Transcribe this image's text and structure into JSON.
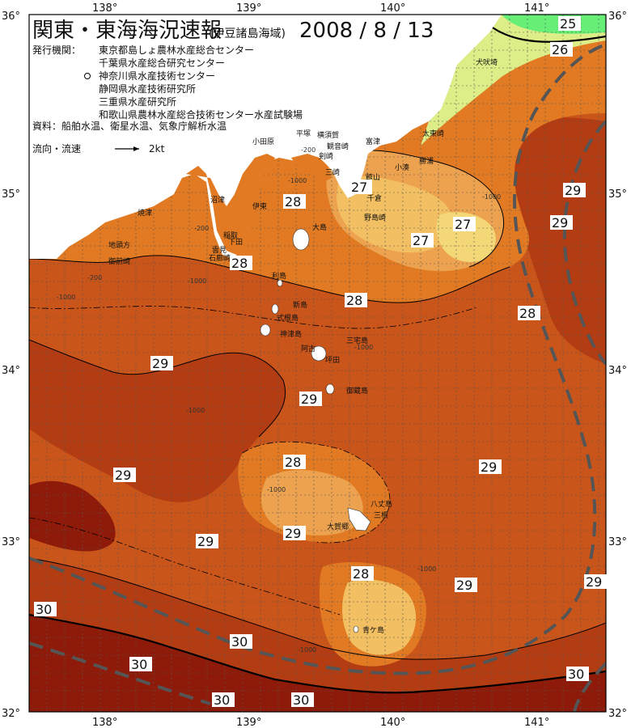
{
  "title": {
    "main": "関東・東海海況速報",
    "region": "(伊豆諸島海域)",
    "date": "2008 / 8 / 13"
  },
  "info": {
    "agencies_label": "発行機関：",
    "agencies": [
      "東京都島しょ農林水産総合センター",
      "千葉県水産総合研究センター",
      "神奈川県水産技術センター",
      "静岡県水産技術研究所",
      "三重県水産研究所",
      "和歌山県農林水産総合技術センター水産試験場"
    ],
    "sources": "資料：船舶水温、衛星水温、気象庁解析水温",
    "flow_label": "流向・流速",
    "flow_scale": "2kt"
  },
  "axes": {
    "lon_labels": [
      "138°",
      "139°",
      "140°",
      "141°"
    ],
    "lat_labels": [
      "36°",
      "35°",
      "34°",
      "33°",
      "32°"
    ]
  },
  "colors": {
    "t25": "#66ee77",
    "t26": "#ddee88",
    "t265": "#f4d878",
    "t27": "#f2c062",
    "t275": "#eca24e",
    "t28": "#e17a22",
    "t285": "#c9551a",
    "t29": "#b33c12",
    "t30": "#8e1a0a",
    "land": "#ffffff"
  },
  "places": [
    "小田原",
    "平塚",
    "横須賀",
    "観音崎",
    "富津",
    "剣崎",
    "三崎",
    "館山",
    "小湊",
    "勝浦",
    "太東崎",
    "犬吠埼",
    "千倉",
    "野島崎",
    "沼津",
    "伊東",
    "焼津",
    "稲取",
    "下田",
    "石廊崎",
    "雲見",
    "地頭方",
    "御前崎",
    "大島",
    "利島",
    "新島",
    "式根島",
    "神津島",
    "三宅島",
    "阿古",
    "坪田",
    "御蔵島",
    "八丈島",
    "三根",
    "大賀郷",
    "青ケ島"
  ],
  "depth_labels": [
    "-200",
    "-1000"
  ],
  "temp_labels": [
    "25",
    "26",
    "27",
    "27",
    "27",
    "28",
    "28",
    "28",
    "28",
    "28",
    "28",
    "29",
    "29",
    "29",
    "29",
    "29",
    "29",
    "29",
    "29",
    "29",
    "29",
    "30",
    "30",
    "30",
    "30",
    "30",
    "30"
  ]
}
